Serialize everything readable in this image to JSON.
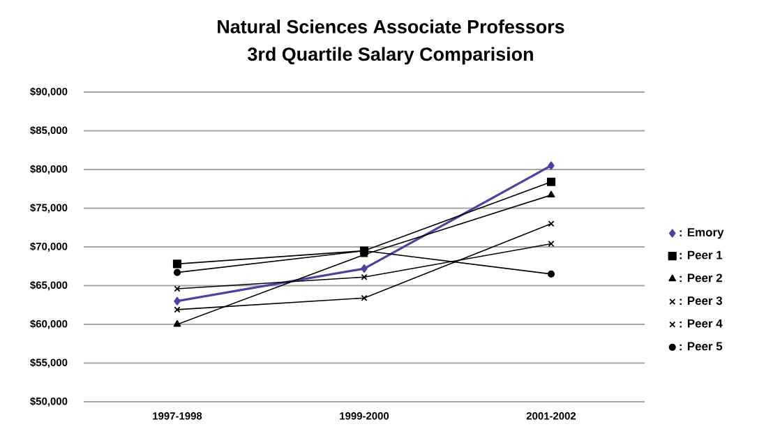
{
  "chart_data": {
    "type": "line",
    "title": "Natural Sciences Associate Professors",
    "subtitle": "3rd Quartile Salary Comparision",
    "categories": [
      "1997-1998",
      "1999-2000",
      "2001-2002"
    ],
    "series": [
      {
        "name": ": Emory",
        "color": "#5040a0",
        "marker": "diamond",
        "values": [
          63000,
          67200,
          80500
        ]
      },
      {
        "name": ": Peer 1",
        "color": "#000000",
        "marker": "square",
        "values": [
          67800,
          69500,
          78400
        ]
      },
      {
        "name": ": Peer 2",
        "color": "#000000",
        "marker": "triangle",
        "values": [
          60000,
          69000,
          76700
        ]
      },
      {
        "name": ": Peer 3",
        "color": "#000000",
        "marker": "cross",
        "values": [
          61900,
          63400,
          73000
        ]
      },
      {
        "name": ": Peer 4",
        "color": "#000000",
        "marker": "cross",
        "values": [
          64600,
          66100,
          70400
        ]
      },
      {
        "name": ": Peer 5",
        "color": "#000000",
        "marker": "circle",
        "values": [
          66700,
          69500,
          66500
        ]
      }
    ],
    "ylim": [
      50000,
      90000
    ],
    "yticks": [
      {
        "value": 50000,
        "label": "$50,000"
      },
      {
        "value": 55000,
        "label": "$55,000"
      },
      {
        "value": 60000,
        "label": "$60,000"
      },
      {
        "value": 65000,
        "label": "$65,000"
      },
      {
        "value": 70000,
        "label": "$70,000"
      },
      {
        "value": 75000,
        "label": "$75,000"
      },
      {
        "value": 80000,
        "label": "$80,000"
      },
      {
        "value": 85000,
        "label": "$85,000"
      },
      {
        "value": 90000,
        "label": "$90,000"
      }
    ],
    "grid": "y",
    "legend": "right",
    "line_style": "solid"
  }
}
